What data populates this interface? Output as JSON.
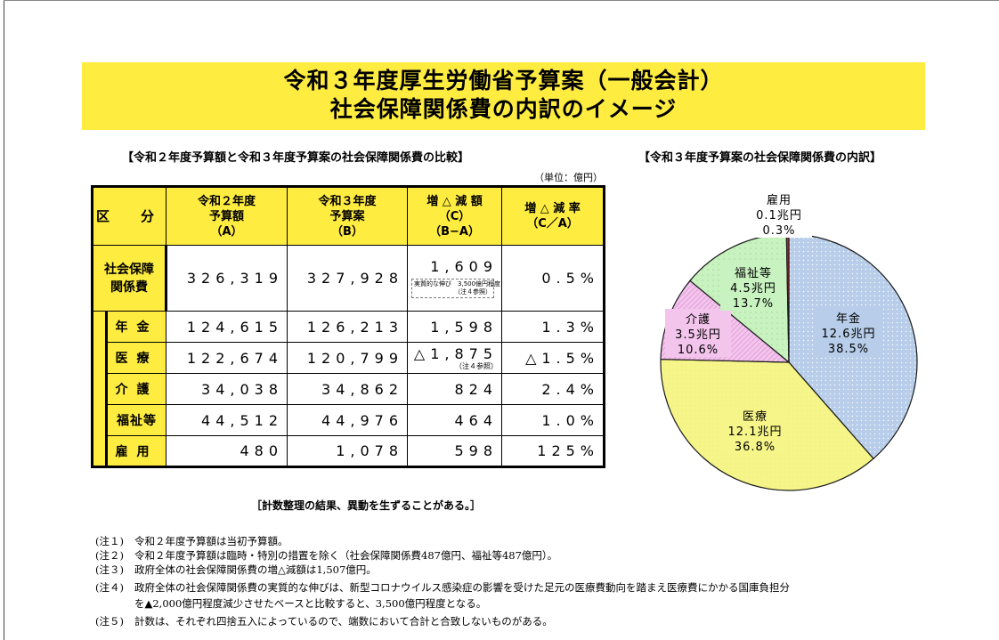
{
  "title": {
    "line1": "令和３年度厚生労働省予算案（一般会計）",
    "line2": "社会保障関係費の内訳のイメージ"
  },
  "table_heading": "【令和２年度予算額と令和３年度予算案の社会保障関係費の比較】",
  "unit": "（単位：億円）",
  "columns": [
    {
      "lines": [
        "区　分"
      ]
    },
    {
      "lines": [
        "令和２年度",
        "予算額",
        "（A）"
      ]
    },
    {
      "lines": [
        "令和３年度",
        "予算案",
        "（B）"
      ]
    },
    {
      "lines": [
        "増 △ 減 額",
        "（C）",
        "（B−A）"
      ]
    },
    {
      "lines": [
        "増 △ 減 率",
        "（C／A）"
      ]
    }
  ],
  "rows": {
    "total": {
      "label1": "社会保障",
      "label2": "関係費",
      "a": "326,319",
      "b": "327,928",
      "c": "1,609",
      "c_note1": "実質的な伸び　3,500億円程度",
      "c_note2": "（注４参照）",
      "rate": "0.5%"
    },
    "pension": {
      "label": "年金",
      "a": "124,615",
      "b": "126,213",
      "c": "1,598",
      "rate": "1.3%"
    },
    "medical": {
      "label": "医療",
      "a": "122,674",
      "b": "120,799",
      "c": "△1,875",
      "c_note": "（注４参照）",
      "rate": "△1.5%"
    },
    "care": {
      "label": "介護",
      "a": "34,038",
      "b": "34,862",
      "c": "824",
      "rate": "2.4%"
    },
    "welfare": {
      "label": "福祉等",
      "a": "44,512",
      "b": "44,976",
      "c": "464",
      "rate": "1.0%"
    },
    "employment": {
      "label": "雇用",
      "a": "480",
      "b": "1,078",
      "c": "598",
      "rate": "125%"
    }
  },
  "calc_note": "［計数整理の結果、異動を生ずることがある。］",
  "footnotes": [
    {
      "label": "(注１)",
      "text": "令和２年度予算額は当初予算額。"
    },
    {
      "label": "(注２)",
      "text": "令和２年度予算額は臨時・特別の措置を除く（社会保障関係費487億円、福祉等487億円）。"
    },
    {
      "label": "(注３)",
      "text": "政府全体の社会保障関係費の増△減額は1,507億円。"
    },
    {
      "label": "(注４)",
      "text": "政府全体の社会保障関係費の実質的な伸びは、新型コロナウイルス感染症の影響を受けた足元の医療費動向を踏まえ医療費にかかる国庫負担分"
    },
    {
      "label": "",
      "text": "を▲2,000億円程度減少させたベースと比較すると、3,500億円程度となる。"
    },
    {
      "label": "(注５)",
      "text": "計数は、それぞれ四捨五入によっているので、端数において合計と合致しないものがある。"
    }
  ],
  "chart_data": {
    "type": "pie",
    "title": "【令和３年度予算案の社会保障関係費の内訳】",
    "slices": [
      {
        "name": "年金",
        "amount": "12.6兆円",
        "percent_label": "38.5%",
        "value": 38.5,
        "color": "#b7cde9"
      },
      {
        "name": "医療",
        "amount": "12.1兆円",
        "percent_label": "36.8%",
        "value": 36.8,
        "color": "#f6f58a"
      },
      {
        "name": "介護",
        "amount": "3.5兆円",
        "percent_label": "10.6%",
        "value": 10.6,
        "color": "#f3c4ec"
      },
      {
        "name": "福祉等",
        "amount": "4.5兆円",
        "percent_label": "13.7%",
        "value": 13.7,
        "color": "#c8f2c0"
      },
      {
        "name": "雇用",
        "amount": "0.1兆円",
        "percent_label": "0.3%",
        "value": 0.3,
        "color": "#d21f1f"
      }
    ]
  }
}
